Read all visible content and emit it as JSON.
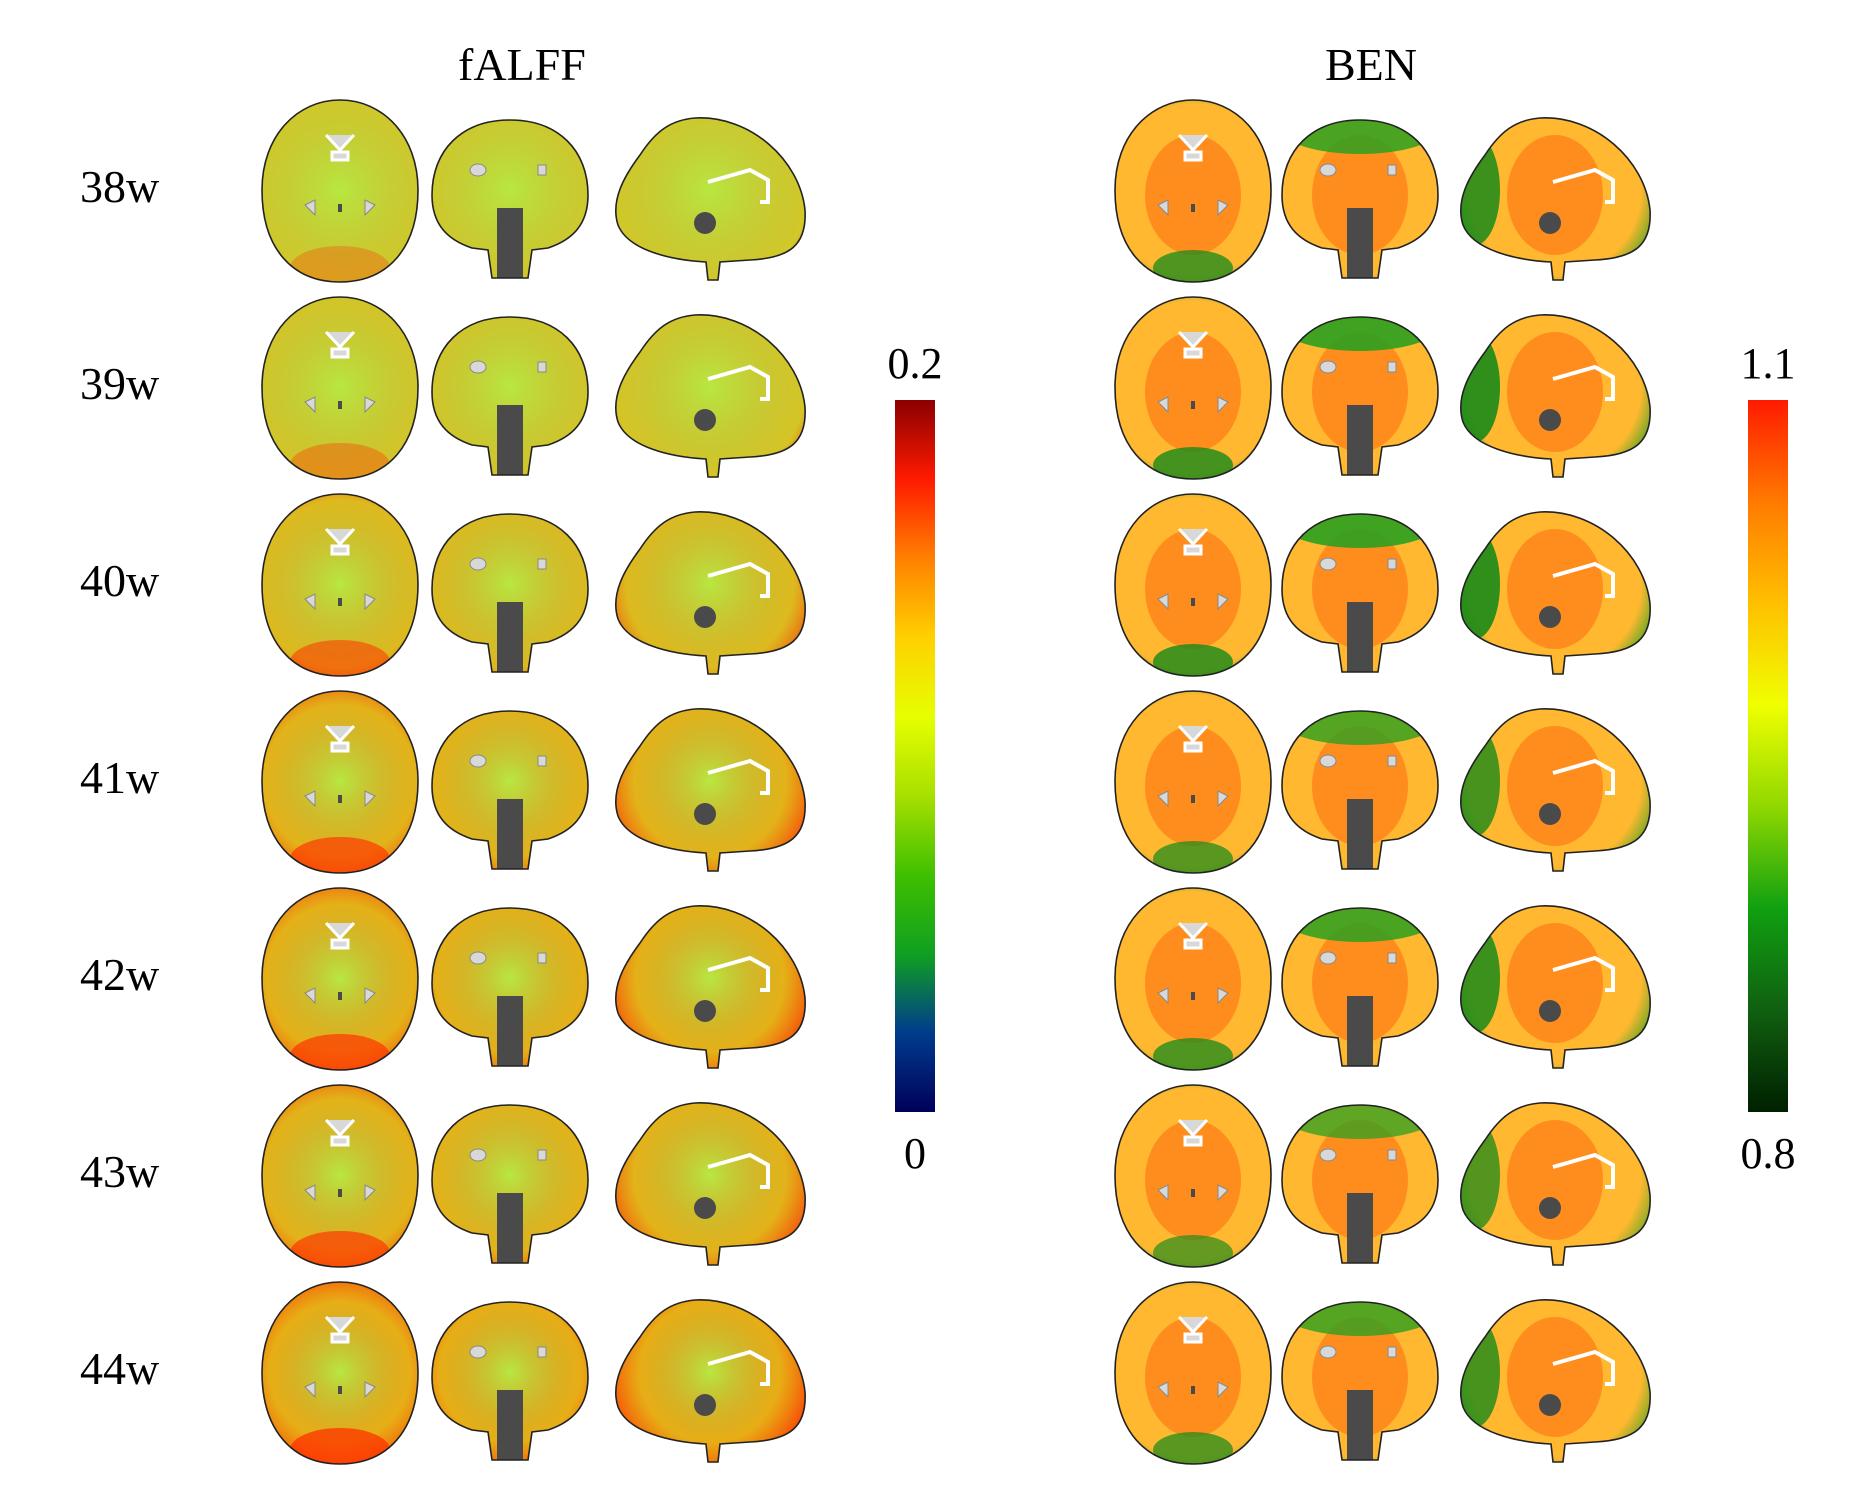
{
  "panels": [
    {
      "title": "fALFF",
      "colorbar": {
        "max": "0.2",
        "min": "0",
        "stops": [
          "#8b0000",
          "#ff1a00",
          "#ff8000",
          "#ffd000",
          "#e6ff00",
          "#a8e000",
          "#40c000",
          "#10a020",
          "#003c8c",
          "#00005a"
        ]
      }
    },
    {
      "title": "BEN",
      "colorbar": {
        "max": "1.1",
        "min": "0.8",
        "stops": [
          "#ff1a00",
          "#ff7a00",
          "#ffc000",
          "#f0ff00",
          "#90d800",
          "#10a010",
          "#106010",
          "#002000"
        ]
      }
    }
  ],
  "rows": [
    {
      "age": "38w",
      "falff": 0.15,
      "ben": 0.85
    },
    {
      "age": "39w",
      "falff": 0.25,
      "ben": 0.9
    },
    {
      "age": "40w",
      "falff": 0.55,
      "ben": 0.9
    },
    {
      "age": "41w",
      "falff": 0.75,
      "ben": 0.8
    },
    {
      "age": "42w",
      "falff": 0.8,
      "ben": 0.85
    },
    {
      "age": "43w",
      "falff": 0.75,
      "ben": 0.75
    },
    {
      "age": "44w",
      "falff": 0.9,
      "ben": 0.8
    }
  ],
  "views": [
    "axial",
    "coronal",
    "sagittal"
  ],
  "colors": {
    "falff_base": "#b8e840",
    "falff_hot": "#ff2a00",
    "ben_base": "#ffb830",
    "ben_cold": "#2aa020",
    "ventricle": "#d8d8d8",
    "brainstem": "#4a4a4a"
  }
}
